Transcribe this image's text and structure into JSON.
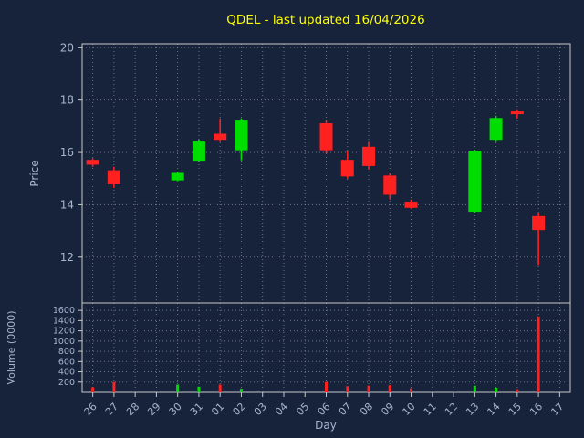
{
  "title": "QDEL - last updated 16/04/2026",
  "colors": {
    "background": "#17223b",
    "frame": "#c8c8c8",
    "grid": "#9aa3b5",
    "label": "#a8b4cf",
    "title": "#ffff00",
    "up": "#00dd00",
    "down": "#ff2020"
  },
  "chart_data": {
    "type": "candlestick",
    "title": "QDEL - last updated 16/04/2026",
    "xlabel": "Day",
    "ylabel": "Price",
    "volume_ylabel": "Volume (0000)",
    "categories": [
      "26",
      "27",
      "28",
      "29",
      "30",
      "31",
      "01",
      "02",
      "03",
      "04",
      "05",
      "06",
      "07",
      "08",
      "09",
      "10",
      "11",
      "12",
      "13",
      "14",
      "15",
      "16",
      "17"
    ],
    "price_ticks": [
      12,
      14,
      16,
      18,
      20
    ],
    "price_range": [
      10.25,
      20.15
    ],
    "volume_ticks": [
      200,
      400,
      600,
      800,
      1000,
      1200,
      1400,
      1600
    ],
    "volume_range": [
      0,
      1745
    ],
    "grid": true,
    "legend": "none",
    "candles": [
      {
        "day": "26",
        "open": 15.7,
        "high": 15.78,
        "low": 15.45,
        "close": 15.55,
        "volume": 100
      },
      {
        "day": "27",
        "open": 15.3,
        "high": 15.45,
        "low": 14.65,
        "close": 14.8,
        "volume": 200
      },
      {
        "day": "30",
        "open": 14.95,
        "high": 15.25,
        "low": 14.9,
        "close": 15.2,
        "volume": 150
      },
      {
        "day": "31",
        "open": 15.7,
        "high": 16.5,
        "low": 15.65,
        "close": 16.4,
        "volume": 110
      },
      {
        "day": "01",
        "open": 16.7,
        "high": 17.3,
        "low": 16.4,
        "close": 16.5,
        "volume": 150
      },
      {
        "day": "02",
        "open": 16.1,
        "high": 17.3,
        "low": 15.7,
        "close": 17.2,
        "volume": 70
      },
      {
        "day": "06",
        "open": 17.1,
        "high": 17.25,
        "low": 15.95,
        "close": 16.1,
        "volume": 200
      },
      {
        "day": "07",
        "open": 15.7,
        "high": 16.05,
        "low": 15.0,
        "close": 15.1,
        "volume": 120
      },
      {
        "day": "08",
        "open": 16.2,
        "high": 16.4,
        "low": 15.35,
        "close": 15.5,
        "volume": 130
      },
      {
        "day": "09",
        "open": 15.1,
        "high": 15.2,
        "low": 14.2,
        "close": 14.4,
        "volume": 140
      },
      {
        "day": "10",
        "open": 14.1,
        "high": 14.2,
        "low": 13.85,
        "close": 13.9,
        "volume": 80
      },
      {
        "day": "13",
        "open": 13.75,
        "high": 16.1,
        "low": 13.7,
        "close": 16.05,
        "volume": 130
      },
      {
        "day": "14",
        "open": 16.5,
        "high": 17.4,
        "low": 16.4,
        "close": 17.3,
        "volume": 90
      },
      {
        "day": "15",
        "open": 17.55,
        "high": 17.65,
        "low": 17.3,
        "close": 17.5,
        "volume": 60
      },
      {
        "day": "16",
        "open": 13.55,
        "high": 13.7,
        "low": 11.7,
        "close": 13.05,
        "volume": 1480
      }
    ]
  }
}
